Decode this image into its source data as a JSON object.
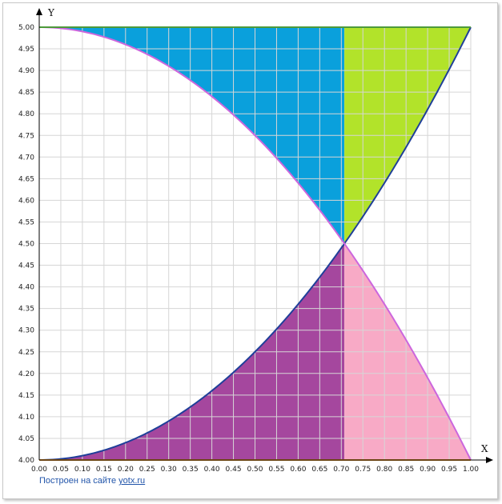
{
  "footer": {
    "text": "Построен на сайте",
    "link": "yotx.ru"
  },
  "chart_data": {
    "type": "area",
    "xlabel": "X",
    "ylabel": "Y",
    "xlim": [
      0,
      1
    ],
    "ylim": [
      4,
      5
    ],
    "x_ticks": [
      "0.00",
      "0.05",
      "0.10",
      "0.15",
      "0.20",
      "0.25",
      "0.30",
      "0.35",
      "0.40",
      "0.45",
      "0.50",
      "0.55",
      "0.60",
      "0.65",
      "0.70",
      "0.75",
      "0.80",
      "0.85",
      "0.90",
      "0.95",
      "1.00"
    ],
    "y_ticks": [
      "4.00",
      "4.05",
      "4.10",
      "4.15",
      "4.20",
      "4.25",
      "4.30",
      "4.35",
      "4.40",
      "4.45",
      "4.50",
      "4.55",
      "4.60",
      "4.65",
      "4.70",
      "4.75",
      "4.80",
      "4.85",
      "4.90",
      "4.95",
      "5.00"
    ],
    "grid": true,
    "curves": [
      {
        "equation": "y = 4 + x^2",
        "color": "#1f3f99"
      },
      {
        "equation": "y = 5 - x^2",
        "color": "#cc66dd"
      },
      {
        "equation": "y = 5",
        "color": "#4d9a3a"
      },
      {
        "equation": "y = 4",
        "color": "#d98a2a"
      }
    ],
    "split_x": 0.7071,
    "regions": [
      {
        "color": "#0aa0dc",
        "between": [
          "5 - x^2",
          "5"
        ],
        "x_range": [
          0,
          0.7071
        ]
      },
      {
        "color": "#b2e32a",
        "between": [
          "4 + x^2",
          "5"
        ],
        "x_range": [
          0.7071,
          1
        ]
      },
      {
        "color": "#a5479e",
        "between": [
          "4",
          "4 + x^2"
        ],
        "x_range": [
          0,
          0.7071
        ]
      },
      {
        "color": "#f8aac6",
        "between": [
          "4",
          "5 - x^2"
        ],
        "x_range": [
          0.7071,
          1
        ]
      }
    ]
  }
}
